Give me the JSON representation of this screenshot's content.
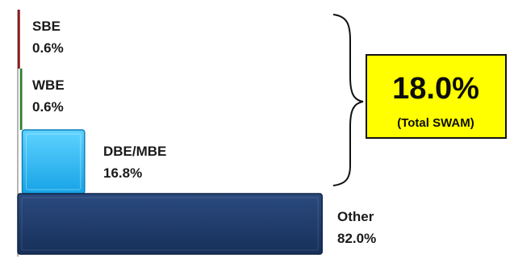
{
  "chart_data": {
    "type": "bar",
    "orientation": "horizontal",
    "stacked_staircase": true,
    "categories": [
      "SBE",
      "WBE",
      "DBE/MBE",
      "Other"
    ],
    "values": [
      0.6,
      0.6,
      16.8,
      82.0
    ],
    "value_labels": [
      "0.6%",
      "0.6%",
      "16.8%",
      "82.0%"
    ],
    "bar_colors": [
      "#8b1a1a",
      "#2e7d32",
      "#29b6f6",
      "#1f3a66"
    ],
    "xlim": [
      0,
      100
    ],
    "grid": false,
    "legend": "none",
    "callout": {
      "value": "18.0%",
      "label": "(Total SWAM)",
      "fill": "#ffff00",
      "border": "#111111",
      "brace_spans": [
        "SBE",
        "WBE",
        "DBE/MBE"
      ]
    }
  }
}
